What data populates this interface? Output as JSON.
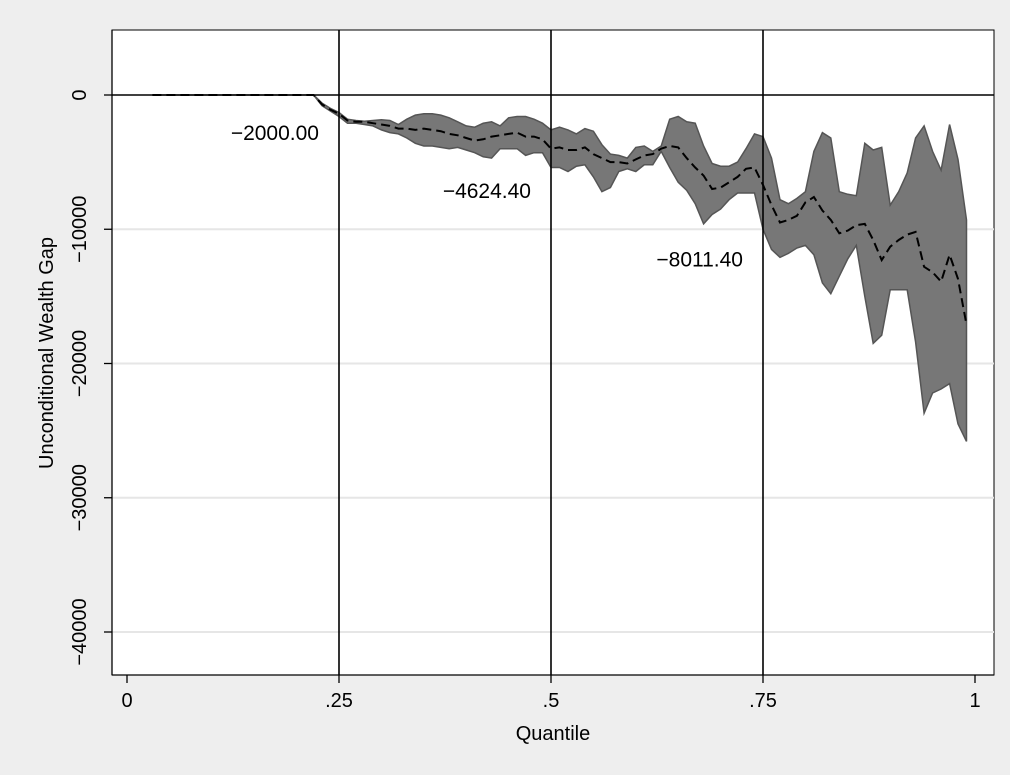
{
  "chart_data": {
    "type": "area",
    "title": "",
    "xlabel": "Quantile",
    "ylabel": "Unconditional Wealth Gap",
    "xlim": [
      0,
      1
    ],
    "ylim": [
      -43000,
      4500
    ],
    "x_ticks": [
      0,
      0.25,
      0.5,
      0.75,
      1
    ],
    "x_tick_labels": [
      "0",
      ".25",
      ".5",
      ".75",
      "1"
    ],
    "y_ticks": [
      0,
      -10000,
      -20000,
      -30000,
      -40000
    ],
    "y_tick_labels": [
      "0",
      "−10000",
      "−20000",
      "−30000",
      "−40000"
    ],
    "grid": "horizontal",
    "legend": "none",
    "reference_lines": {
      "x": [
        0.25,
        0.5,
        0.75
      ],
      "y": [
        0
      ]
    },
    "colors": {
      "band": "#777777",
      "band_edge": "#555555",
      "line": "#000000",
      "background": "#eeeeee",
      "plot_background": "#ffffff",
      "grid": "#e6e6e6"
    },
    "annotations": [
      {
        "text": "−2000.00",
        "x": 0.25,
        "y": -2000
      },
      {
        "text": "−4624.40",
        "x": 0.5,
        "y": -4624.4
      },
      {
        "text": "−8011.40",
        "x": 0.75,
        "y": -8011.4
      }
    ],
    "series": [
      {
        "type": "band",
        "x": [
          0.03,
          0.05,
          0.1,
          0.15,
          0.2,
          0.22,
          0.23,
          0.24,
          0.25,
          0.26,
          0.27,
          0.28,
          0.29,
          0.3,
          0.31,
          0.32,
          0.33,
          0.34,
          0.35,
          0.36,
          0.37,
          0.38,
          0.39,
          0.4,
          0.41,
          0.42,
          0.43,
          0.44,
          0.45,
          0.46,
          0.47,
          0.48,
          0.49,
          0.5,
          0.51,
          0.52,
          0.53,
          0.54,
          0.55,
          0.56,
          0.57,
          0.58,
          0.59,
          0.6,
          0.61,
          0.62,
          0.63,
          0.64,
          0.65,
          0.66,
          0.67,
          0.68,
          0.69,
          0.7,
          0.71,
          0.72,
          0.73,
          0.74,
          0.75,
          0.76,
          0.77,
          0.78,
          0.79,
          0.8,
          0.81,
          0.82,
          0.83,
          0.84,
          0.85,
          0.86,
          0.87,
          0.88,
          0.89,
          0.9,
          0.91,
          0.92,
          0.93,
          0.94,
          0.95,
          0.96,
          0.97,
          0.98,
          0.99
        ],
        "upper": [
          0,
          0,
          0,
          0,
          0,
          0,
          -600,
          -1000,
          -1300,
          -1800,
          -1900,
          -1950,
          -1900,
          -1850,
          -1900,
          -2200,
          -1800,
          -1500,
          -1400,
          -1400,
          -1500,
          -1700,
          -2000,
          -2300,
          -2400,
          -2100,
          -2000,
          -2300,
          -1700,
          -1600,
          -1600,
          -1800,
          -2100,
          -2600,
          -2400,
          -2600,
          -2900,
          -2500,
          -2700,
          -3700,
          -4400,
          -4500,
          -4700,
          -3900,
          -3800,
          -4200,
          -3800,
          -1800,
          -1600,
          -2000,
          -2100,
          -3800,
          -5100,
          -5300,
          -5300,
          -5000,
          -4000,
          -2900,
          -3100,
          -4700,
          -7800,
          -8100,
          -7700,
          -7200,
          -4200,
          -2800,
          -3200,
          -7200,
          -7400,
          -7500,
          -3600,
          -4100,
          -3900,
          -8200,
          -7200,
          -5800,
          -3200,
          -2300,
          -4200,
          -5600,
          -2200,
          -4800,
          -9300
        ],
        "lower": [
          0,
          0,
          0,
          0,
          0,
          0,
          -800,
          -1200,
          -1600,
          -2100,
          -2100,
          -2200,
          -2300,
          -2600,
          -2800,
          -2900,
          -3200,
          -3600,
          -3800,
          -3800,
          -3900,
          -4000,
          -3900,
          -4100,
          -4300,
          -4600,
          -4700,
          -4000,
          -4000,
          -4000,
          -4500,
          -4300,
          -4300,
          -5400,
          -5400,
          -5700,
          -5300,
          -5200,
          -6100,
          -7200,
          -6900,
          -5700,
          -5500,
          -5700,
          -5200,
          -5200,
          -4200,
          -5400,
          -6500,
          -7100,
          -8100,
          -9600,
          -8900,
          -8500,
          -7800,
          -7300,
          -7300,
          -7300,
          -10000,
          -11500,
          -12100,
          -11800,
          -11400,
          -11200,
          -11900,
          -14000,
          -14800,
          -13500,
          -12200,
          -11200,
          -15000,
          -18500,
          -17900,
          -14500,
          -14500,
          -14500,
          -18400,
          -23700,
          -22200,
          -21900,
          -21500,
          -24500,
          -25800
        ]
      },
      {
        "type": "line",
        "style": "dashed",
        "x": [
          0.03,
          0.05,
          0.1,
          0.15,
          0.2,
          0.22,
          0.23,
          0.24,
          0.25,
          0.26,
          0.27,
          0.28,
          0.29,
          0.3,
          0.31,
          0.32,
          0.33,
          0.34,
          0.35,
          0.36,
          0.37,
          0.38,
          0.39,
          0.4,
          0.41,
          0.42,
          0.43,
          0.44,
          0.45,
          0.46,
          0.47,
          0.48,
          0.49,
          0.5,
          0.51,
          0.52,
          0.53,
          0.54,
          0.55,
          0.56,
          0.57,
          0.58,
          0.59,
          0.6,
          0.61,
          0.62,
          0.63,
          0.64,
          0.65,
          0.66,
          0.67,
          0.68,
          0.69,
          0.7,
          0.71,
          0.72,
          0.73,
          0.74,
          0.75,
          0.76,
          0.77,
          0.78,
          0.79,
          0.8,
          0.81,
          0.82,
          0.83,
          0.84,
          0.85,
          0.86,
          0.87,
          0.88,
          0.89,
          0.9,
          0.91,
          0.92,
          0.93,
          0.94,
          0.95,
          0.96,
          0.97,
          0.98,
          0.99
        ],
        "y": [
          0,
          0,
          0,
          0,
          0,
          0,
          -700,
          -1100,
          -1400,
          -1900,
          -2000,
          -2000,
          -2100,
          -2200,
          -2300,
          -2500,
          -2500,
          -2600,
          -2500,
          -2600,
          -2700,
          -2900,
          -3000,
          -3200,
          -3400,
          -3300,
          -3100,
          -3000,
          -2900,
          -2800,
          -3100,
          -3100,
          -3300,
          -4000,
          -3900,
          -4100,
          -4100,
          -3900,
          -4400,
          -4700,
          -5000,
          -5000,
          -5100,
          -4800,
          -4500,
          -4400,
          -4000,
          -3800,
          -3900,
          -4700,
          -5400,
          -6000,
          -7000,
          -6900,
          -6500,
          -6100,
          -5500,
          -5400,
          -6700,
          -8200,
          -9500,
          -9300,
          -9000,
          -8000,
          -7600,
          -8600,
          -9300,
          -10300,
          -10100,
          -9700,
          -9600,
          -10800,
          -12300,
          -11300,
          -10800,
          -10400,
          -10200,
          -12800,
          -13200,
          -13900,
          -11900,
          -13700,
          -17100
        ]
      }
    ]
  }
}
